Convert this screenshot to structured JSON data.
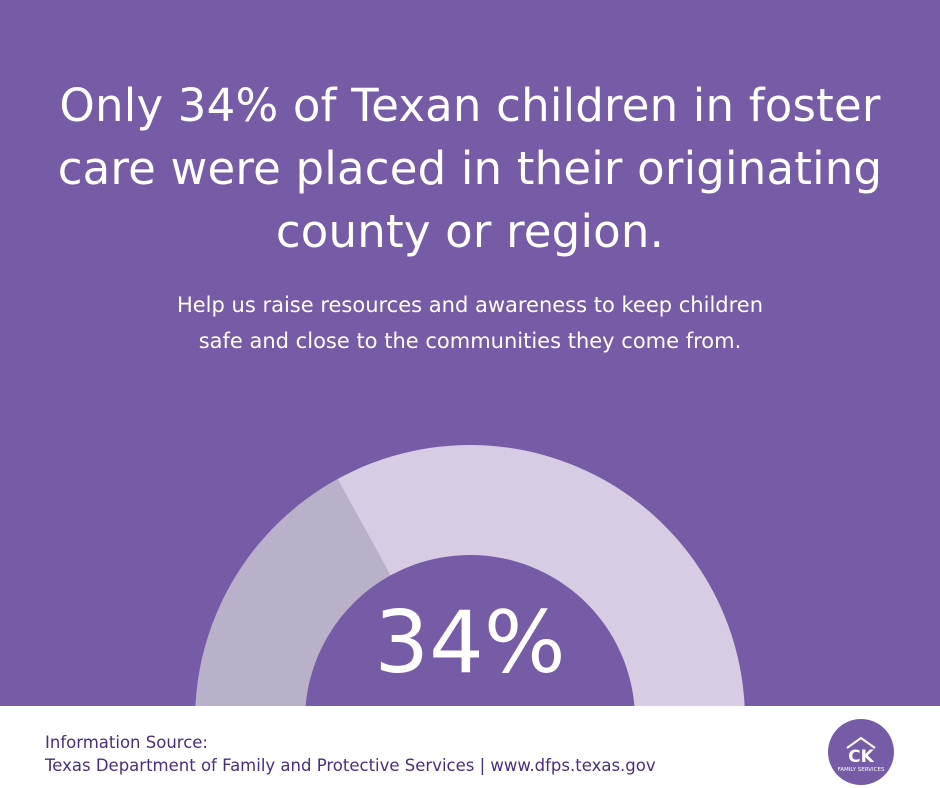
{
  "colors": {
    "background": "#765ba6",
    "gauge_value": "#b9b0c9",
    "gauge_remainder": "#d6cce4",
    "footer_text": "#4b2d7f",
    "logo_fill": "#765ba6"
  },
  "headline": "Only 34% of Texan children in foster care were placed in their originating county or region.",
  "subtext": "Help us raise resources and awareness to keep children safe and close to the communities they come from.",
  "chart_data": {
    "type": "pie",
    "variant": "semicircle-gauge",
    "value": 34,
    "max": 100,
    "value_label": "34%",
    "segments": [
      {
        "value": 34,
        "color": "#b9b0c9"
      },
      {
        "value": 66,
        "color": "#d6cce4"
      }
    ]
  },
  "footer": {
    "source_label": "Information Source:",
    "source_text": "Texas Department of Family and Protective Services | www.dfps.texas.gov"
  },
  "logo": {
    "initials": "CK",
    "name": "FAMILY SERVICES"
  }
}
